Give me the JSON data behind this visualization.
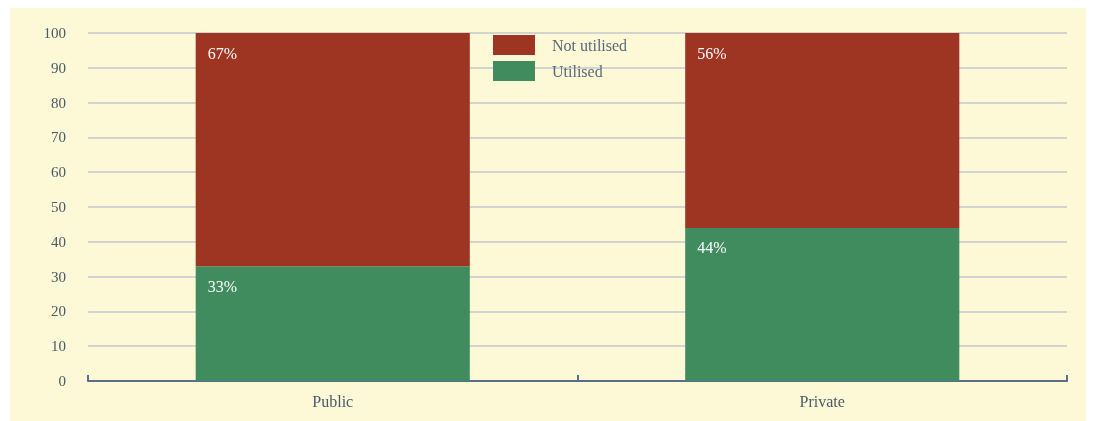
{
  "chart_data": {
    "type": "bar",
    "stacked": true,
    "categories": [
      "Public",
      "Private"
    ],
    "series": [
      {
        "name": "Utilised",
        "color": "#418c5f",
        "values": [
          33,
          44
        ],
        "value_labels": [
          "33%",
          "44%"
        ]
      },
      {
        "name": "Not utilised",
        "color": "#9e3422",
        "values": [
          67,
          56
        ],
        "value_labels": [
          "67%",
          "56%"
        ]
      }
    ],
    "ylim": [
      0,
      100
    ],
    "yticks": [
      0,
      10,
      20,
      30,
      40,
      50,
      60,
      70,
      80,
      90,
      100
    ],
    "grid": "y",
    "legend": "top"
  }
}
